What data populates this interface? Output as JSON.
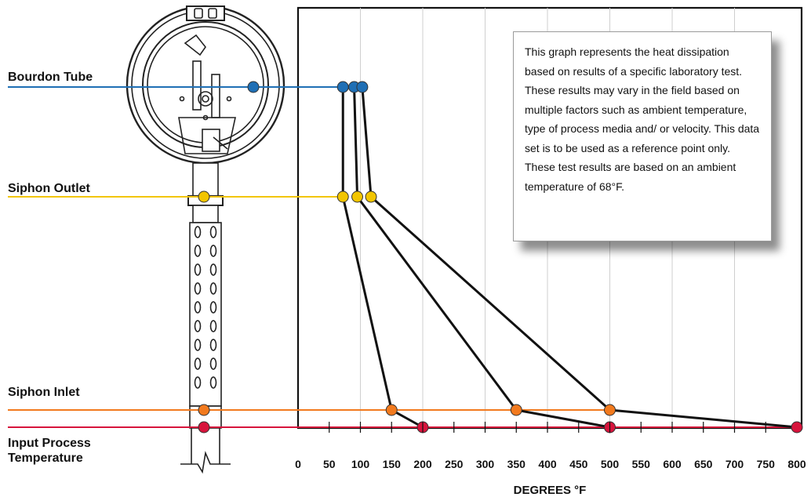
{
  "chart_data": {
    "type": "line",
    "xlabel": "DEGREES °F",
    "x_ticks": [
      0,
      50,
      100,
      150,
      200,
      250,
      300,
      350,
      400,
      450,
      500,
      550,
      600,
      650,
      700,
      750,
      800
    ],
    "xlim": [
      0,
      800
    ],
    "grid": "vertical",
    "levels": [
      {
        "key": "bourdon",
        "name": "Bourdon Tube",
        "color": "#1f6fb5"
      },
      {
        "key": "outlet",
        "name": "Siphon Outlet",
        "color": "#f2c500"
      },
      {
        "key": "inlet",
        "name": "Siphon Inlet",
        "color": "#f27a1e"
      },
      {
        "key": "input",
        "name": "Input Process Temperature",
        "color": "#d7143c"
      }
    ],
    "series": [
      {
        "input": 200,
        "inlet": 150,
        "outlet": 72,
        "bourdon": 72
      },
      {
        "input": 500,
        "inlet": 350,
        "outlet": 95,
        "bourdon": 90
      },
      {
        "input": 800,
        "inlet": 500,
        "outlet": 117,
        "bourdon": 103
      }
    ]
  },
  "note": {
    "paragraph1": "This graph represents the heat dissipation based on results of a specific laboratory test. These results may vary in the field based on multiple factors such as ambient temperature, type of process media and/ or velocity. This data set is to be used as a reference point only.",
    "paragraph2": "These test results are based on an ambient temperature of 68°F."
  },
  "labels": {
    "bourdon": "Bourdon Tube",
    "outlet": "Siphon Outlet",
    "inlet": "Siphon Inlet",
    "input_line1": "Input Process",
    "input_line2": "Temperature"
  }
}
